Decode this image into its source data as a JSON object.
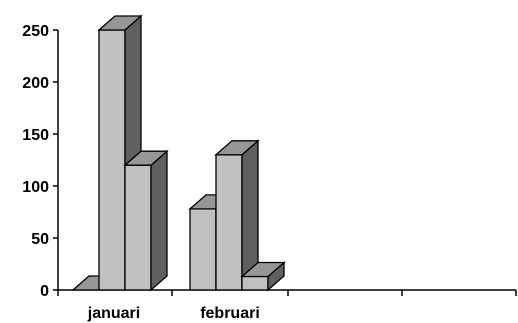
{
  "chart_data": {
    "type": "bar",
    "style": "3d-clustered-column",
    "categories": [
      "januari",
      "februari"
    ],
    "series": [
      {
        "values": [
          0,
          78
        ]
      },
      {
        "values": [
          250,
          130
        ]
      },
      {
        "values": [
          120,
          13
        ]
      }
    ],
    "ylim": [
      0,
      250
    ],
    "yticks": [
      "0",
      "50",
      "100",
      "150",
      "200",
      "250"
    ],
    "xlabel": "",
    "ylabel": "",
    "title": "",
    "grid": false,
    "legend": "none",
    "colors": {
      "front": "#c0c0c0",
      "top": "#969696",
      "side": "#606060",
      "outline": "#000000"
    }
  }
}
